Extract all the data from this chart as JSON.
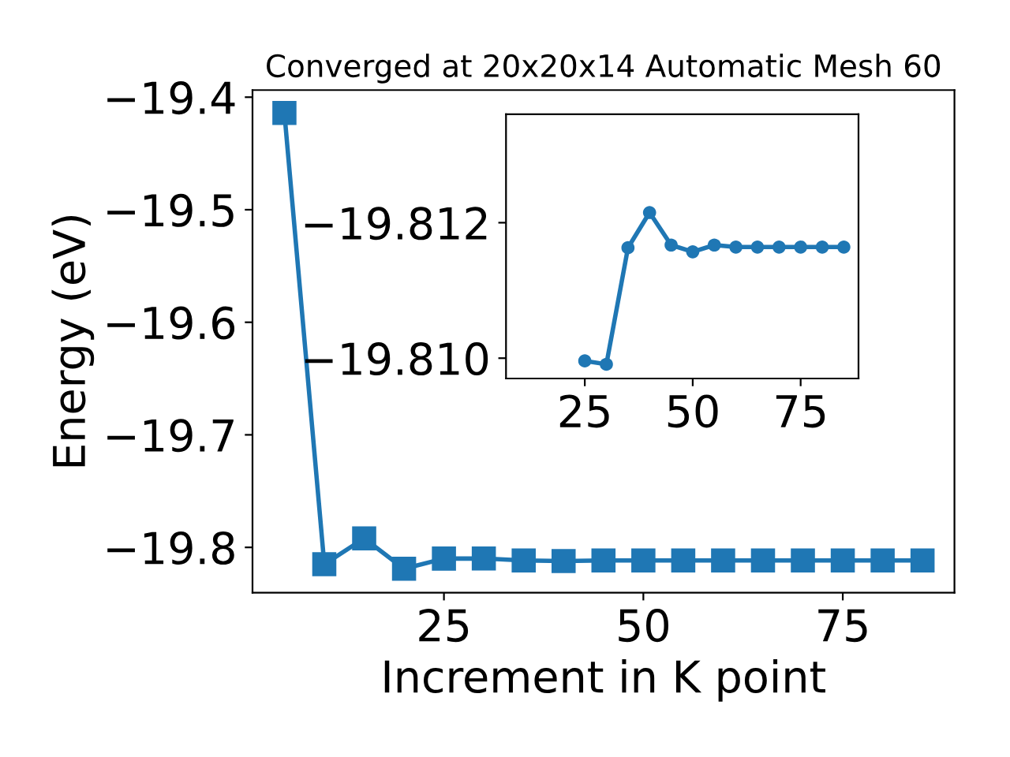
{
  "chart_data": [
    {
      "type": "line",
      "title": "Converged at 20x20x14 Automatic Mesh 60",
      "xlabel": "Increment in K point",
      "ylabel": "Energy (eV)",
      "marker": "square",
      "grid": false,
      "x": [
        5,
        10,
        15,
        20,
        25,
        30,
        35,
        40,
        45,
        50,
        55,
        60,
        65,
        70,
        75,
        80,
        85
      ],
      "series": [
        {
          "color": "#1f77b4",
          "values": [
            -19.414,
            -19.815,
            -19.792,
            -19.819,
            -19.80996,
            -19.80991,
            -19.81163,
            -19.81215,
            -19.81167,
            -19.81157,
            -19.81167,
            -19.81164,
            -19.81164,
            -19.81164,
            -19.81164,
            -19.81164,
            -19.81164
          ]
        }
      ],
      "xlim": [
        1,
        89
      ],
      "xticks": [
        25,
        50,
        75
      ],
      "ylim": [
        -19.8403,
        -19.3937
      ],
      "yticks": [
        {
          "value": -19.8,
          "label": "−19.8"
        },
        {
          "value": -19.7,
          "label": "−19.7"
        },
        {
          "value": -19.6,
          "label": "−19.6"
        },
        {
          "value": -19.5,
          "label": "−19.5"
        },
        {
          "value": -19.4,
          "label": "−19.4"
        }
      ]
    },
    {
      "type": "line",
      "marker": "circle",
      "grid": false,
      "x": [
        25,
        30,
        35,
        40,
        45,
        50,
        55,
        60,
        65,
        70,
        75,
        80,
        85
      ],
      "series": [
        {
          "color": "#1f77b4",
          "values": [
            -19.80996,
            -19.80991,
            -19.81163,
            -19.81215,
            -19.81167,
            -19.81157,
            -19.81167,
            -19.81164,
            -19.81164,
            -19.81164,
            -19.81164,
            -19.81164,
            -19.81164
          ]
        }
      ],
      "xlim": [
        6.75,
        88.4
      ],
      "xticks": [
        25,
        50,
        75
      ],
      "ylim": [
        -19.8097,
        -19.8136
      ],
      "yticks": [
        {
          "value": -19.812,
          "label": "−19.812"
        },
        {
          "value": -19.81,
          "label": "−19.810"
        }
      ]
    }
  ]
}
